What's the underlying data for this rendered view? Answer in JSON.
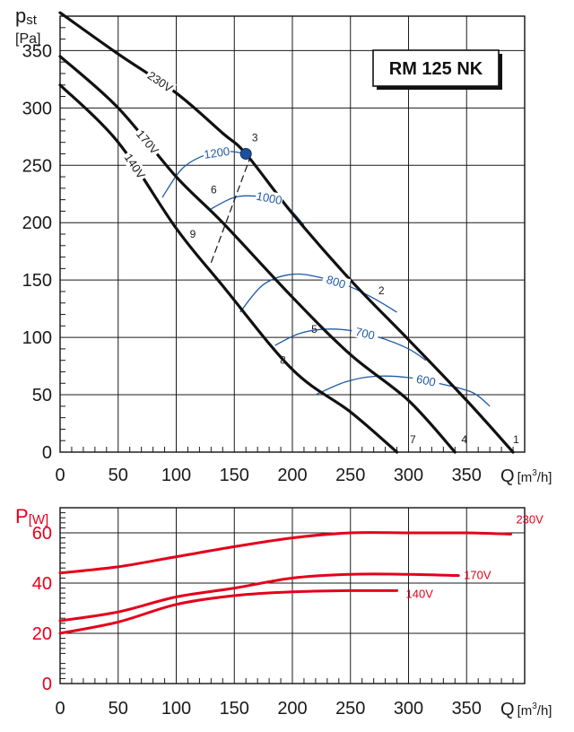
{
  "chart_data": [
    {
      "type": "line",
      "title": "RM 125 NK",
      "ylabel": "pst",
      "ylabel_sub": "st",
      "ylabel_main": "p",
      "yunit": "[Pa]",
      "xlabel": "Q",
      "xunit_pre": "[m",
      "xunit_sup": "3",
      "xunit_post": "/h]",
      "xlim": [
        0,
        400
      ],
      "ylim": [
        0,
        380
      ],
      "xticks": [
        0,
        50,
        100,
        150,
        200,
        250,
        300,
        350
      ],
      "yticks": [
        0,
        50,
        100,
        150,
        200,
        250,
        300,
        350
      ],
      "series": [
        {
          "name": "230V",
          "points": [
            [
              0,
              383
            ],
            [
              50,
              347
            ],
            [
              100,
              313
            ],
            [
              140,
              278
            ],
            [
              160,
              260
            ],
            [
              200,
              208
            ],
            [
              250,
              150
            ],
            [
              300,
              98
            ],
            [
              350,
              45
            ],
            [
              390,
              0
            ]
          ]
        },
        {
          "name": "170V",
          "points": [
            [
              0,
              345
            ],
            [
              50,
              300
            ],
            [
              100,
              240
            ],
            [
              140,
              200
            ],
            [
              200,
              135
            ],
            [
              250,
              85
            ],
            [
              300,
              45
            ],
            [
              340,
              0
            ]
          ]
        },
        {
          "name": "140V",
          "points": [
            [
              0,
              320
            ],
            [
              50,
              270
            ],
            [
              100,
              195
            ],
            [
              140,
              145
            ],
            [
              200,
              72
            ],
            [
              250,
              35
            ],
            [
              290,
              0
            ]
          ]
        }
      ],
      "rpm_curves": [
        {
          "label": "1200",
          "points": [
            [
              88,
              222
            ],
            [
              105,
              247
            ],
            [
              125,
              259
            ],
            [
              145,
              262
            ],
            [
              160,
              260
            ]
          ]
        },
        {
          "label": "1000",
          "points": [
            [
              130,
              212
            ],
            [
              150,
              222
            ],
            [
              170,
              223
            ],
            [
              190,
              219
            ],
            [
              210,
              198
            ]
          ]
        },
        {
          "label": "800",
          "points": [
            [
              155,
              122
            ],
            [
              175,
              146
            ],
            [
              200,
              155
            ],
            [
              225,
              152
            ],
            [
              250,
              144
            ],
            [
              270,
              134
            ],
            [
              290,
              122
            ]
          ]
        },
        {
          "label": "700",
          "points": [
            [
              185,
              93
            ],
            [
              205,
              103
            ],
            [
              225,
              107
            ],
            [
              250,
              106
            ],
            [
              275,
              100
            ],
            [
              300,
              90
            ],
            [
              315,
              80
            ]
          ]
        },
        {
          "label": "600",
          "points": [
            [
              220,
              50
            ],
            [
              245,
              61
            ],
            [
              270,
              66
            ],
            [
              300,
              65
            ],
            [
              330,
              59
            ],
            [
              355,
              52
            ],
            [
              370,
              40
            ]
          ]
        }
      ],
      "system_line": {
        "points": [
          [
            130,
            165
          ],
          [
            163,
            255
          ]
        ]
      },
      "operating_point": {
        "label": "3",
        "x": 160,
        "y": 260
      },
      "point_labels": [
        {
          "label": "1",
          "x": 388,
          "y": 0
        },
        {
          "label": "2",
          "x": 272,
          "y": 133
        },
        {
          "label": "3",
          "x": 160,
          "y": 260
        },
        {
          "label": "4",
          "x": 345,
          "y": 0
        },
        {
          "label": "5",
          "x": 222,
          "y": 104
        },
        {
          "label": "6",
          "x": 140,
          "y": 221
        },
        {
          "label": "7",
          "x": 296,
          "y": 0
        },
        {
          "label": "8",
          "x": 198,
          "y": 80
        },
        {
          "label": "9",
          "x": 122,
          "y": 187
        }
      ]
    },
    {
      "type": "line",
      "ylabel_main": "P",
      "yunit": "[W]",
      "xlabel": "Q",
      "xunit_pre": "[m",
      "xunit_sup": "3",
      "xunit_post": "/h]",
      "xlim": [
        0,
        400
      ],
      "ylim": [
        0,
        70
      ],
      "xticks": [
        0,
        50,
        100,
        150,
        200,
        250,
        300,
        350
      ],
      "yticks": [
        0,
        20,
        40,
        60
      ],
      "series": [
        {
          "name": "230V",
          "points": [
            [
              0,
              44
            ],
            [
              50,
              46.5
            ],
            [
              100,
              50.5
            ],
            [
              150,
              54.5
            ],
            [
              200,
              58
            ],
            [
              250,
              60
            ],
            [
              300,
              60
            ],
            [
              350,
              60
            ],
            [
              388,
              59.5
            ]
          ]
        },
        {
          "name": "170V",
          "points": [
            [
              0,
              25
            ],
            [
              50,
              28.5
            ],
            [
              100,
              34.5
            ],
            [
              150,
              38
            ],
            [
              200,
              42
            ],
            [
              250,
              43.5
            ],
            [
              300,
              43.5
            ],
            [
              343,
              43
            ]
          ]
        },
        {
          "name": "140V",
          "points": [
            [
              0,
              20
            ],
            [
              50,
              24.5
            ],
            [
              100,
              31.5
            ],
            [
              150,
              35
            ],
            [
              200,
              36.5
            ],
            [
              250,
              37
            ],
            [
              290,
              37
            ]
          ]
        }
      ]
    }
  ]
}
